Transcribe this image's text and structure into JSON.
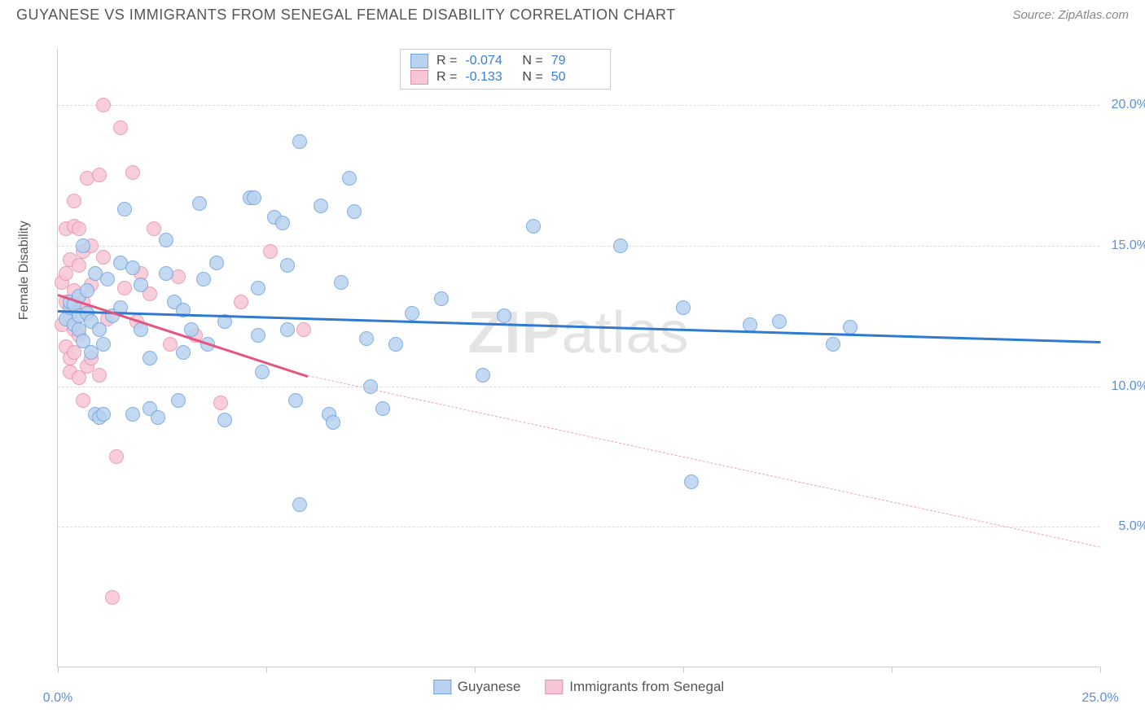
{
  "title": "GUYANESE VS IMMIGRANTS FROM SENEGAL FEMALE DISABILITY CORRELATION CHART",
  "source": "Source: ZipAtlas.com",
  "y_axis_label": "Female Disability",
  "watermark_bold": "ZIP",
  "watermark_light": "atlas",
  "chart": {
    "type": "scatter",
    "xlim": [
      0,
      25
    ],
    "ylim": [
      0,
      22
    ],
    "x_ticks": [
      0,
      5,
      10,
      15,
      20,
      25
    ],
    "x_tick_labels": [
      "0.0%",
      "",
      "",
      "",
      "",
      "25.0%"
    ],
    "y_ticks": [
      5,
      10,
      15,
      20
    ],
    "y_tick_labels": [
      "5.0%",
      "10.0%",
      "15.0%",
      "20.0%"
    ],
    "grid_color": "#dddddd",
    "axis_color": "#cccccc",
    "background_color": "#ffffff",
    "point_radius": 9,
    "series": [
      {
        "name": "Guyanese",
        "fill": "#b9d2ef",
        "stroke": "#6ea3e0",
        "r_value": "-0.074",
        "n_value": "79",
        "trend": {
          "x1": 0,
          "y1": 12.7,
          "x2": 25,
          "y2": 11.6,
          "color": "#2f7ad1",
          "width": 3,
          "dash": false
        },
        "points": [
          [
            0.2,
            12.4
          ],
          [
            0.3,
            12.8
          ],
          [
            0.3,
            13.0
          ],
          [
            0.4,
            12.2
          ],
          [
            0.4,
            12.9
          ],
          [
            0.5,
            12.5
          ],
          [
            0.5,
            12.0
          ],
          [
            0.5,
            13.2
          ],
          [
            0.6,
            15.0
          ],
          [
            0.6,
            11.6
          ],
          [
            0.7,
            12.6
          ],
          [
            0.7,
            13.4
          ],
          [
            0.8,
            11.2
          ],
          [
            0.8,
            12.3
          ],
          [
            0.9,
            14.0
          ],
          [
            0.9,
            9.0
          ],
          [
            1.0,
            12.0
          ],
          [
            1.0,
            8.9
          ],
          [
            1.1,
            11.5
          ],
          [
            1.1,
            9.0
          ],
          [
            1.2,
            13.8
          ],
          [
            1.3,
            12.5
          ],
          [
            1.5,
            12.8
          ],
          [
            1.5,
            14.4
          ],
          [
            1.6,
            16.3
          ],
          [
            1.8,
            9.0
          ],
          [
            1.8,
            14.2
          ],
          [
            2.0,
            13.6
          ],
          [
            2.0,
            12.0
          ],
          [
            2.2,
            11.0
          ],
          [
            2.2,
            9.2
          ],
          [
            2.4,
            8.9
          ],
          [
            2.6,
            15.2
          ],
          [
            2.6,
            14.0
          ],
          [
            2.8,
            13.0
          ],
          [
            2.9,
            9.5
          ],
          [
            3.0,
            11.2
          ],
          [
            3.0,
            12.7
          ],
          [
            3.2,
            12.0
          ],
          [
            3.4,
            16.5
          ],
          [
            3.5,
            13.8
          ],
          [
            3.6,
            11.5
          ],
          [
            3.8,
            14.4
          ],
          [
            4.0,
            8.8
          ],
          [
            4.0,
            12.3
          ],
          [
            4.6,
            16.7
          ],
          [
            4.7,
            16.7
          ],
          [
            4.8,
            11.8
          ],
          [
            4.8,
            13.5
          ],
          [
            4.9,
            10.5
          ],
          [
            5.2,
            16.0
          ],
          [
            5.4,
            15.8
          ],
          [
            5.5,
            12.0
          ],
          [
            5.5,
            14.3
          ],
          [
            5.7,
            9.5
          ],
          [
            5.8,
            18.7
          ],
          [
            5.8,
            5.8
          ],
          [
            6.3,
            16.4
          ],
          [
            6.5,
            9.0
          ],
          [
            6.6,
            8.7
          ],
          [
            6.8,
            13.7
          ],
          [
            7.0,
            17.4
          ],
          [
            7.1,
            16.2
          ],
          [
            7.4,
            11.7
          ],
          [
            7.5,
            10.0
          ],
          [
            7.8,
            9.2
          ],
          [
            8.1,
            11.5
          ],
          [
            8.5,
            12.6
          ],
          [
            9.2,
            13.1
          ],
          [
            10.2,
            10.4
          ],
          [
            10.7,
            12.5
          ],
          [
            11.4,
            15.7
          ],
          [
            13.5,
            15.0
          ],
          [
            15.0,
            12.8
          ],
          [
            15.2,
            6.6
          ],
          [
            16.6,
            12.2
          ],
          [
            17.3,
            12.3
          ],
          [
            18.6,
            11.5
          ],
          [
            19.0,
            12.1
          ]
        ]
      },
      {
        "name": "Immigrants from Senegal",
        "fill": "#f6c6d4",
        "stroke": "#ea8fb0",
        "r_value": "-0.133",
        "n_value": "50",
        "trend_solid": {
          "x1": 0,
          "y1": 13.3,
          "x2": 6.0,
          "y2": 10.4,
          "color": "#e5567f",
          "width": 3
        },
        "trend_dash": {
          "x1": 6.0,
          "y1": 10.4,
          "x2": 25,
          "y2": 4.3,
          "color": "#f0a3b8",
          "width": 1.5
        },
        "points": [
          [
            0.1,
            13.7
          ],
          [
            0.1,
            12.2
          ],
          [
            0.2,
            14.0
          ],
          [
            0.2,
            11.4
          ],
          [
            0.2,
            15.6
          ],
          [
            0.2,
            13.0
          ],
          [
            0.3,
            12.5
          ],
          [
            0.3,
            11.0
          ],
          [
            0.3,
            10.5
          ],
          [
            0.3,
            14.5
          ],
          [
            0.4,
            15.7
          ],
          [
            0.4,
            13.4
          ],
          [
            0.4,
            16.6
          ],
          [
            0.4,
            12.0
          ],
          [
            0.4,
            11.2
          ],
          [
            0.5,
            15.6
          ],
          [
            0.5,
            14.3
          ],
          [
            0.5,
            10.3
          ],
          [
            0.5,
            12.8
          ],
          [
            0.5,
            11.8
          ],
          [
            0.6,
            13.0
          ],
          [
            0.6,
            9.5
          ],
          [
            0.6,
            14.8
          ],
          [
            0.7,
            17.4
          ],
          [
            0.7,
            12.6
          ],
          [
            0.7,
            10.7
          ],
          [
            0.8,
            15.0
          ],
          [
            0.8,
            11.0
          ],
          [
            0.8,
            13.6
          ],
          [
            1.0,
            17.5
          ],
          [
            1.0,
            10.4
          ],
          [
            1.1,
            20.0
          ],
          [
            1.1,
            14.6
          ],
          [
            1.2,
            12.4
          ],
          [
            1.3,
            2.5
          ],
          [
            1.4,
            7.5
          ],
          [
            1.5,
            19.2
          ],
          [
            1.6,
            13.5
          ],
          [
            1.8,
            17.6
          ],
          [
            1.9,
            12.3
          ],
          [
            2.0,
            14.0
          ],
          [
            2.2,
            13.3
          ],
          [
            2.3,
            15.6
          ],
          [
            2.7,
            11.5
          ],
          [
            2.9,
            13.9
          ],
          [
            3.3,
            11.8
          ],
          [
            3.9,
            9.4
          ],
          [
            4.4,
            13.0
          ],
          [
            5.1,
            14.8
          ],
          [
            5.9,
            12.0
          ]
        ]
      }
    ]
  },
  "stats_box": {
    "r_label": "R =",
    "n_label": "N ="
  },
  "bottom_legend": {
    "label1": "Guyanese",
    "label2": "Immigrants from Senegal"
  },
  "colors": {
    "title": "#555555",
    "source": "#888888",
    "tick_label": "#5b8fd6",
    "stats_val": "#3b7dd8"
  }
}
